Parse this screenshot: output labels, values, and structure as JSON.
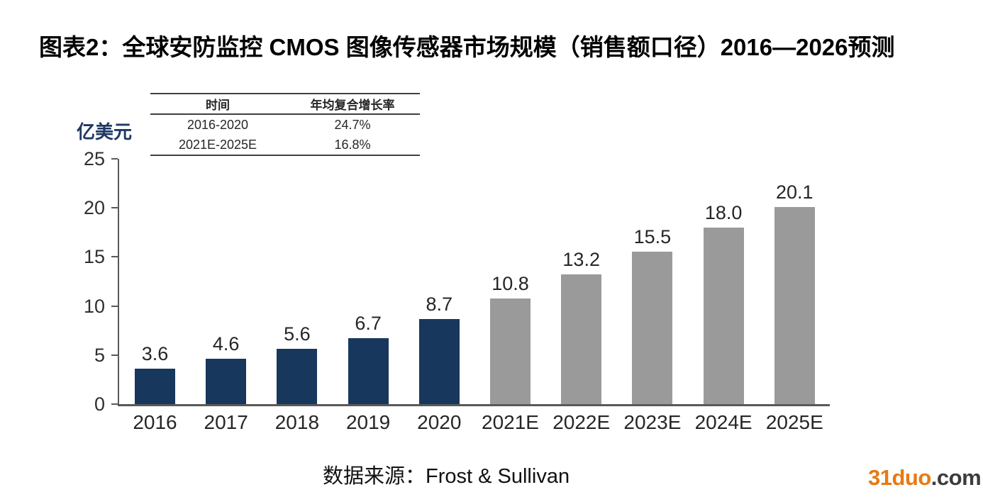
{
  "figure": {
    "title": "图表2：全球安防监控 CMOS 图像传感器市场规模（销售额口径）2016—2026预测",
    "source": "数据来源：Frost & Sullivan"
  },
  "y_axis_unit_label": "亿美元",
  "growth_table": {
    "headers": [
      "时间",
      "年均复合增长率"
    ],
    "rows": [
      {
        "period": "2016-2020",
        "cagr": "24.7%"
      },
      {
        "period": "2021E-2025E",
        "cagr": "16.8%"
      }
    ]
  },
  "chart_data": {
    "type": "bar",
    "title": "图表2：全球安防监控 CMOS 图像传感器市场规模（销售额口径）2016—2026预测",
    "categories": [
      "2016",
      "2017",
      "2018",
      "2019",
      "2020",
      "2021E",
      "2022E",
      "2023E",
      "2024E",
      "2025E"
    ],
    "values": [
      3.6,
      4.6,
      5.6,
      6.7,
      8.7,
      10.8,
      13.2,
      15.5,
      18.0,
      20.1
    ],
    "value_labels": [
      "3.6",
      "4.6",
      "5.6",
      "6.7",
      "8.7",
      "10.8",
      "13.2",
      "15.5",
      "18.0",
      "20.1"
    ],
    "bar_colors": [
      "#17375d",
      "#17375d",
      "#17375d",
      "#17375d",
      "#17375d",
      "#9a9a9a",
      "#9a9a9a",
      "#9a9a9a",
      "#9a9a9a",
      "#9a9a9a"
    ],
    "historical_color": "#17375d",
    "forecast_color": "#9a9a9a",
    "xlabel": "",
    "ylabel": "亿美元",
    "ylim": [
      0,
      25
    ],
    "y_ticks": [
      0,
      5,
      10,
      15,
      20,
      25
    ],
    "grid": false,
    "legend": null
  },
  "watermark": {
    "brand": "31duo",
    "suffix": ".com",
    "brand_color": "#e87a12"
  }
}
